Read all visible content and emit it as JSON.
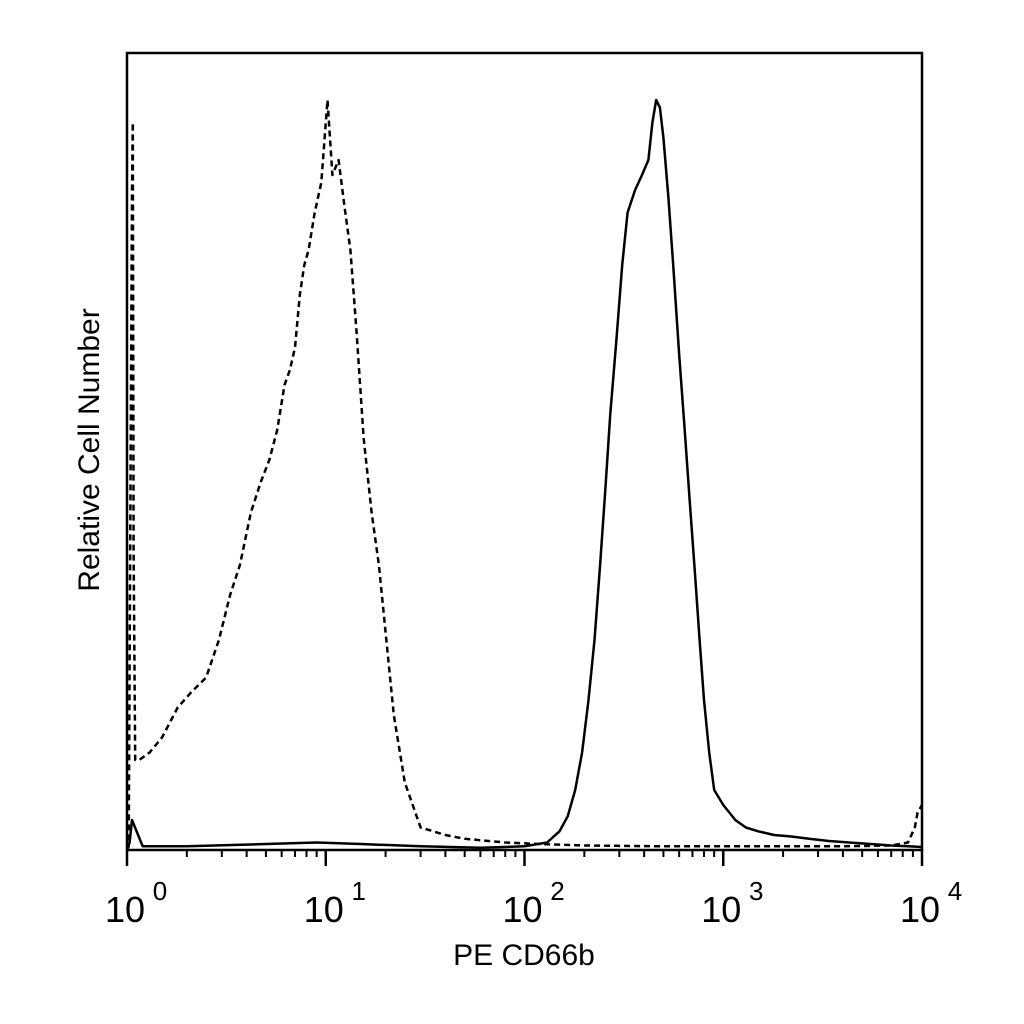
{
  "chart_data": {
    "type": "line",
    "title": "",
    "xlabel": "PE CD66b",
    "ylabel": "Relative Cell Number",
    "xscale": "log",
    "xlim": [
      1,
      10000
    ],
    "ylim": [
      0,
      100
    ],
    "grid": false,
    "legend": "none",
    "x_ticks": [
      {
        "base": "10",
        "exp": "0",
        "value": 1
      },
      {
        "base": "10",
        "exp": "1",
        "value": 10
      },
      {
        "base": "10",
        "exp": "2",
        "value": 100
      },
      {
        "base": "10",
        "exp": "3",
        "value": 1000
      },
      {
        "base": "10",
        "exp": "4",
        "value": 10000
      }
    ],
    "series": [
      {
        "style": "dashed",
        "color": "#000000",
        "x": [
          1.0,
          1.02,
          1.06,
          1.07,
          1.08,
          1.1,
          1.15,
          1.3,
          1.5,
          1.8,
          2.1,
          2.5,
          2.9,
          3.3,
          3.7,
          4.2,
          4.7,
          5.2,
          5.7,
          6.2,
          6.6,
          7.0,
          7.4,
          7.8,
          8.2,
          8.8,
          9.5,
          10.2,
          10.8,
          11.6,
          12.4,
          13.3,
          14.3,
          15.5,
          17.0,
          18.5,
          20.0,
          22.0,
          25.0,
          30.0,
          40.0,
          50.0,
          80.0,
          120.0,
          200.0,
          500.0,
          1000.0,
          2000.0,
          4000.0,
          7000.0,
          8500.0,
          9200.0,
          9500.0,
          10000.0
        ],
        "y": [
          0.0,
          0.5,
          88.0,
          97.0,
          40.0,
          12.0,
          12.0,
          13.0,
          15.0,
          19.0,
          21.0,
          23.0,
          28.0,
          34.0,
          38.0,
          45.0,
          49.0,
          52.0,
          56.0,
          62.0,
          64.0,
          67.0,
          74.0,
          78.0,
          80.0,
          85.0,
          89.0,
          100.0,
          90.0,
          92.0,
          86.0,
          80.0,
          69.0,
          55.0,
          45.0,
          38.0,
          29.0,
          18.0,
          9.0,
          3.0,
          2.0,
          1.5,
          1.0,
          0.8,
          0.6,
          0.5,
          0.5,
          0.5,
          0.5,
          0.6,
          1.0,
          3.0,
          5.0,
          6.0
        ]
      },
      {
        "style": "solid",
        "color": "#000000",
        "x": [
          1.0,
          1.03,
          1.06,
          1.2,
          2.0,
          5.0,
          9.0,
          15.0,
          30.0,
          60.0,
          100.0,
          130.0,
          150.0,
          165.0,
          180.0,
          195.0,
          210.0,
          225.0,
          240.0,
          255.0,
          270.0,
          290.0,
          310.0,
          330.0,
          360.0,
          390.0,
          420.0,
          440.0,
          460.0,
          480.0,
          500.0,
          530.0,
          560.0,
          600.0,
          640.0,
          680.0,
          720.0,
          760.0,
          800.0,
          850.0,
          900.0,
          1000.0,
          1150.0,
          1300.0,
          1500.0,
          1800.0,
          2200.0,
          2700.0,
          3400.0,
          4300.0,
          5500.0,
          7000.0,
          8500.0,
          10000.0
        ],
        "y": [
          0.0,
          1.0,
          4.0,
          0.5,
          0.5,
          0.8,
          1.0,
          0.8,
          0.5,
          0.3,
          0.5,
          1.0,
          2.5,
          4.5,
          8.0,
          13.0,
          20.0,
          28.0,
          38.0,
          48.0,
          58.0,
          68.0,
          78.0,
          85.0,
          88.0,
          90.0,
          92.0,
          97.0,
          100.0,
          99.0,
          95.0,
          87.0,
          78.0,
          66.0,
          56.0,
          46.0,
          37.0,
          28.0,
          20.0,
          13.0,
          8.0,
          6.0,
          4.0,
          3.0,
          2.5,
          2.0,
          1.8,
          1.5,
          1.2,
          1.0,
          0.8,
          0.6,
          0.5,
          0.4
        ]
      }
    ]
  }
}
